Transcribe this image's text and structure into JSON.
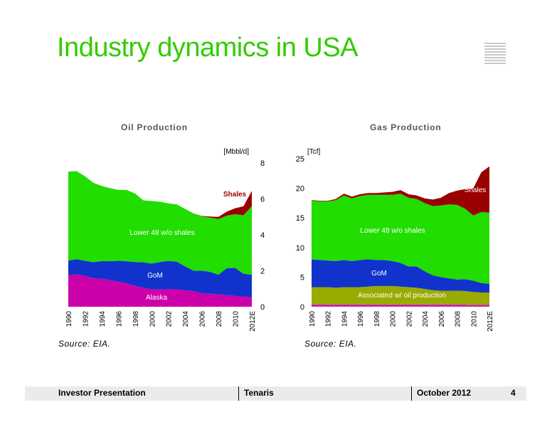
{
  "page": {
    "title": "Industry dynamics in USA",
    "footer": {
      "left": "Investor Presentation",
      "center": "Tenaris",
      "date": "October 2012",
      "page_number": "4"
    }
  },
  "icons": {
    "logo": "tenaris-stripes-logo"
  },
  "colors": {
    "title": "#33cc00",
    "shales": "#990000",
    "lower48": "#22dd00",
    "gom": "#1133cc",
    "alaska": "#cc00aa",
    "associated": "#99aa00",
    "other_gas": "#cc22aa"
  },
  "chart_data": [
    {
      "type": "area",
      "stacked": true,
      "title": "Oil Production",
      "unit_label": "[Mbbl/d]",
      "y_axis_side": "right",
      "ylim": [
        0,
        8
      ],
      "yticks": [
        0,
        2,
        4,
        6,
        8
      ],
      "x": [
        1990,
        1991,
        1992,
        1993,
        1994,
        1995,
        1996,
        1997,
        1998,
        1999,
        2000,
        2001,
        2002,
        2003,
        2004,
        2005,
        2006,
        2007,
        2008,
        2009,
        2010,
        2011,
        2012
      ],
      "x_tick_labels": [
        "1990",
        "1992",
        "1994",
        "1996",
        "1998",
        "2000",
        "2002",
        "2004",
        "2006",
        "2008",
        "2010",
        "2012E"
      ],
      "series": [
        {
          "name": "Alaska",
          "color": "#cc00aa",
          "values": [
            1.77,
            1.8,
            1.71,
            1.58,
            1.56,
            1.48,
            1.39,
            1.3,
            1.17,
            1.05,
            0.97,
            0.96,
            0.98,
            0.97,
            0.91,
            0.86,
            0.74,
            0.72,
            0.68,
            0.65,
            0.6,
            0.56,
            0.53
          ]
        },
        {
          "name": "GoM",
          "color": "#1133cc",
          "values": [
            0.8,
            0.85,
            0.85,
            0.9,
            0.98,
            1.05,
            1.17,
            1.23,
            1.32,
            1.42,
            1.43,
            1.53,
            1.57,
            1.54,
            1.34,
            1.15,
            1.27,
            1.22,
            1.1,
            1.5,
            1.56,
            1.28,
            1.25
          ]
        },
        {
          "name": "Lower 48 w/o shales",
          "color": "#22dd00",
          "values": [
            4.95,
            4.9,
            4.7,
            4.42,
            4.18,
            4.07,
            3.94,
            3.97,
            3.81,
            3.45,
            3.48,
            3.35,
            3.2,
            3.19,
            3.19,
            3.19,
            3.02,
            3.02,
            3.1,
            2.92,
            2.99,
            3.25,
            3.82
          ]
        },
        {
          "name": "Shales",
          "color": "#990000",
          "values": [
            0,
            0,
            0,
            0,
            0,
            0,
            0,
            0,
            0,
            0,
            0,
            0,
            0,
            0,
            0,
            0,
            0.02,
            0.06,
            0.12,
            0.22,
            0.33,
            0.5,
            0.85
          ]
        }
      ]
    },
    {
      "type": "area",
      "stacked": true,
      "title": "Gas Production",
      "unit_label": "[Tcf]",
      "y_axis_side": "left",
      "ylim": [
        0,
        25
      ],
      "yticks": [
        0,
        5,
        10,
        15,
        20,
        25
      ],
      "x": [
        1990,
        1991,
        1992,
        1993,
        1994,
        1995,
        1996,
        1997,
        1998,
        1999,
        2000,
        2001,
        2002,
        2003,
        2004,
        2005,
        2006,
        2007,
        2008,
        2009,
        2010,
        2011,
        2012
      ],
      "x_tick_labels": [
        "1990",
        "1992",
        "1994",
        "1996",
        "1998",
        "2000",
        "2002",
        "2004",
        "2006",
        "2008",
        "2010",
        "2012E"
      ],
      "series": [
        {
          "name": "",
          "color": "#cc22aa",
          "values": [
            0.4,
            0.4,
            0.4,
            0.4,
            0.4,
            0.4,
            0.4,
            0.4,
            0.4,
            0.4,
            0.4,
            0.4,
            0.4,
            0.4,
            0.4,
            0.4,
            0.4,
            0.4,
            0.4,
            0.35,
            0.3,
            0.3,
            0.3
          ]
        },
        {
          "name": "Associated w/ oil production",
          "color": "#99aa00",
          "values": [
            2.9,
            2.9,
            2.9,
            2.8,
            2.9,
            2.9,
            2.9,
            3.0,
            3.1,
            3.1,
            3.1,
            3.0,
            2.9,
            2.8,
            2.6,
            2.4,
            2.3,
            2.3,
            2.3,
            2.3,
            2.2,
            2.1,
            2.1
          ]
        },
        {
          "name": "GoM",
          "color": "#1133cc",
          "values": [
            4.7,
            4.6,
            4.5,
            4.5,
            4.6,
            4.4,
            4.6,
            4.6,
            4.4,
            4.4,
            4.2,
            4.0,
            3.5,
            3.6,
            3.0,
            2.5,
            2.3,
            2.1,
            1.9,
            2.0,
            1.9,
            1.6,
            1.5
          ]
        },
        {
          "name": "Lower 48 w/o shales",
          "color": "#22dd00",
          "values": [
            9.9,
            9.9,
            10.0,
            10.3,
            10.9,
            10.6,
            10.8,
            10.9,
            11.0,
            11.0,
            11.2,
            11.7,
            11.6,
            11.4,
            11.5,
            11.7,
            12.1,
            12.5,
            12.6,
            11.9,
            11.0,
            12.0,
            12.0
          ]
        },
        {
          "name": "Shales",
          "color": "#990000",
          "values": [
            0.1,
            0.1,
            0.1,
            0.2,
            0.3,
            0.3,
            0.3,
            0.3,
            0.3,
            0.4,
            0.5,
            0.6,
            0.6,
            0.6,
            0.8,
            1.1,
            1.3,
            1.9,
            2.4,
            3.3,
            4.6,
            6.7,
            7.8
          ]
        }
      ]
    }
  ],
  "sources": {
    "oil": "Source:  EIA.",
    "gas": "Source:  EIA."
  }
}
